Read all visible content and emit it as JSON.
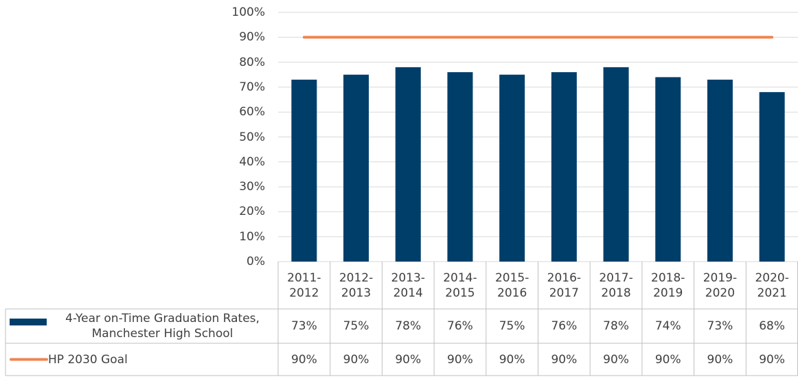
{
  "chart_data": {
    "type": "bar",
    "categories": [
      "2011-2012",
      "2012-2013",
      "2013-2014",
      "2014-2015",
      "2015-2016",
      "2016-2017",
      "2017-2018",
      "2018-2019",
      "2019-2020",
      "2020-2021"
    ],
    "series": [
      {
        "name": "4-Year on-Time Graduation Rates, Manchester High School",
        "type": "bar",
        "color": "#003e6a",
        "values": [
          73,
          75,
          78,
          76,
          75,
          76,
          78,
          74,
          73,
          68
        ],
        "value_labels": [
          "73%",
          "75%",
          "78%",
          "76%",
          "75%",
          "76%",
          "78%",
          "74%",
          "73%",
          "68%"
        ]
      },
      {
        "name": "HP 2030 Goal",
        "type": "line",
        "color": "#ef8552",
        "values": [
          90,
          90,
          90,
          90,
          90,
          90,
          90,
          90,
          90,
          90
        ],
        "value_labels": [
          "90%",
          "90%",
          "90%",
          "90%",
          "90%",
          "90%",
          "90%",
          "90%",
          "90%",
          "90%"
        ]
      }
    ],
    "ylim": [
      0,
      100
    ],
    "yticks": [
      {
        "value": 0,
        "label": "0%"
      },
      {
        "value": 10,
        "label": "10%"
      },
      {
        "value": 20,
        "label": "20%"
      },
      {
        "value": 30,
        "label": "30%"
      },
      {
        "value": 40,
        "label": "40%"
      },
      {
        "value": 50,
        "label": "50%"
      },
      {
        "value": 60,
        "label": "60%"
      },
      {
        "value": 70,
        "label": "70%"
      },
      {
        "value": 80,
        "label": "80%"
      },
      {
        "value": 90,
        "label": "90%"
      },
      {
        "value": 100,
        "label": "100%"
      }
    ],
    "grid": true
  }
}
